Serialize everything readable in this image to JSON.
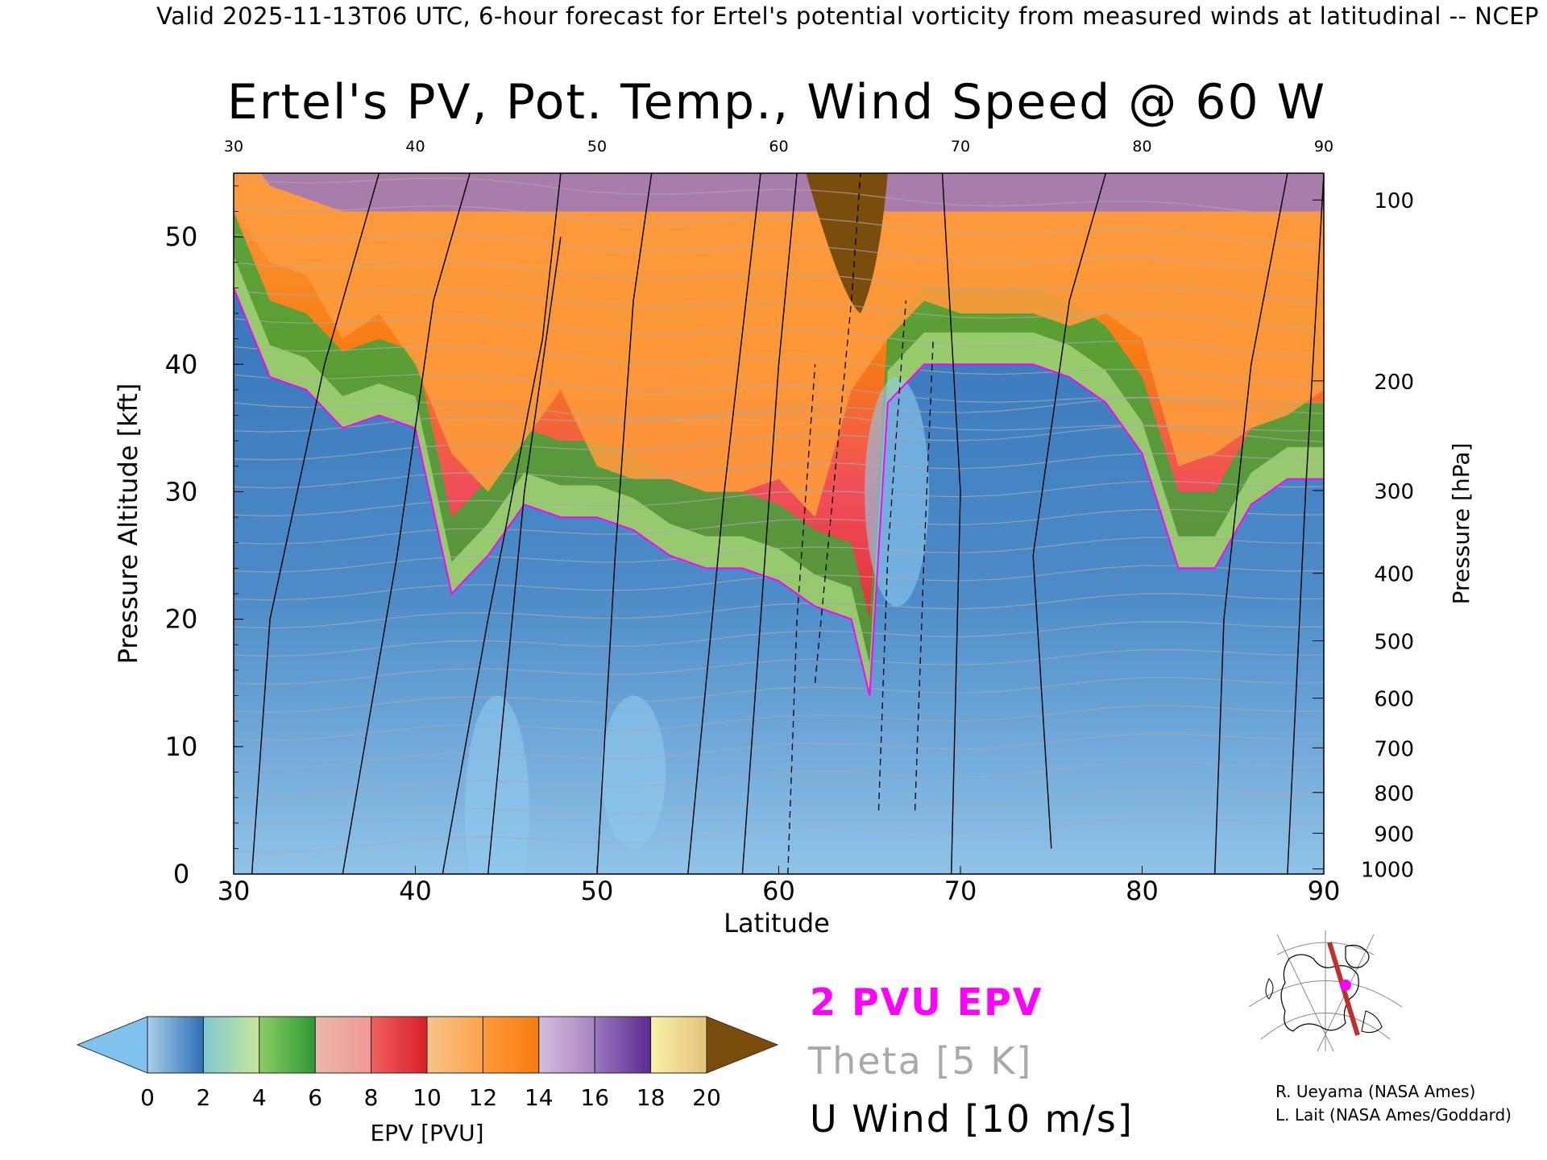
{
  "header": {
    "valid_line": "Valid 2025-11-13T06 UTC, 6-hour forecast for Ertel's potential vorticity from measured winds at latitudinal -- NCEP"
  },
  "chart_data": {
    "type": "heatmap",
    "title": "Ertel's PV, Pot. Temp., Wind Speed @ 60 W",
    "xlabel": "Latitude",
    "ylabel": "Pressure Altitude [kft]",
    "right_axis_label": "Pressure [hPa]",
    "xlim": [
      30,
      90
    ],
    "ylim": [
      0,
      55
    ],
    "x_ticks": [
      30,
      40,
      50,
      60,
      70,
      80,
      90
    ],
    "y_ticks": [
      0,
      10,
      20,
      30,
      40,
      50
    ],
    "pressure_ticks": [
      {
        "hPa": 100,
        "kft": 52.9
      },
      {
        "hPa": 200,
        "kft": 38.7
      },
      {
        "hPa": 300,
        "kft": 30.1
      },
      {
        "hPa": 400,
        "kft": 23.6
      },
      {
        "hPa": 500,
        "kft": 18.3
      },
      {
        "hPa": 600,
        "kft": 13.8
      },
      {
        "hPa": 700,
        "kft": 9.9
      },
      {
        "hPa": 800,
        "kft": 6.4
      },
      {
        "hPa": 900,
        "kft": 3.2
      },
      {
        "hPa": 1000,
        "kft": 0.4
      }
    ],
    "tropopause_2pvu_kft": [
      {
        "lat": 30,
        "kft": 46
      },
      {
        "lat": 32,
        "kft": 39
      },
      {
        "lat": 34,
        "kft": 38
      },
      {
        "lat": 36,
        "kft": 35
      },
      {
        "lat": 38,
        "kft": 36
      },
      {
        "lat": 40,
        "kft": 35
      },
      {
        "lat": 42,
        "kft": 22
      },
      {
        "lat": 44,
        "kft": 25
      },
      {
        "lat": 46,
        "kft": 29
      },
      {
        "lat": 48,
        "kft": 28
      },
      {
        "lat": 50,
        "kft": 28
      },
      {
        "lat": 52,
        "kft": 27
      },
      {
        "lat": 54,
        "kft": 25
      },
      {
        "lat": 56,
        "kft": 24
      },
      {
        "lat": 58,
        "kft": 24
      },
      {
        "lat": 60,
        "kft": 23
      },
      {
        "lat": 62,
        "kft": 21
      },
      {
        "lat": 64,
        "kft": 20
      },
      {
        "lat": 65,
        "kft": 14
      },
      {
        "lat": 66,
        "kft": 37
      },
      {
        "lat": 68,
        "kft": 40
      },
      {
        "lat": 70,
        "kft": 40
      },
      {
        "lat": 72,
        "kft": 40
      },
      {
        "lat": 74,
        "kft": 40
      },
      {
        "lat": 76,
        "kft": 39
      },
      {
        "lat": 78,
        "kft": 37
      },
      {
        "lat": 80,
        "kft": 33
      },
      {
        "lat": 82,
        "kft": 24
      },
      {
        "lat": 84,
        "kft": 24
      },
      {
        "lat": 86,
        "kft": 29
      },
      {
        "lat": 88,
        "kft": 31
      },
      {
        "lat": 90,
        "kft": 31
      }
    ],
    "pv_surface_kft": [
      {
        "lat": 30,
        "kft": 52
      },
      {
        "lat": 32,
        "kft": 48
      },
      {
        "lat": 34,
        "kft": 47
      },
      {
        "lat": 36,
        "kft": 42
      },
      {
        "lat": 38,
        "kft": 44
      },
      {
        "lat": 40,
        "kft": 40
      },
      {
        "lat": 42,
        "kft": 33
      },
      {
        "lat": 44,
        "kft": 30
      },
      {
        "lat": 46,
        "kft": 34
      },
      {
        "lat": 48,
        "kft": 38
      },
      {
        "lat": 50,
        "kft": 32
      },
      {
        "lat": 52,
        "kft": 31
      },
      {
        "lat": 54,
        "kft": 31
      },
      {
        "lat": 56,
        "kft": 30
      },
      {
        "lat": 58,
        "kft": 30
      },
      {
        "lat": 60,
        "kft": 31
      },
      {
        "lat": 62,
        "kft": 28
      },
      {
        "lat": 64,
        "kft": 38
      },
      {
        "lat": 65,
        "kft": 40
      },
      {
        "lat": 66,
        "kft": 42
      },
      {
        "lat": 68,
        "kft": 45
      },
      {
        "lat": 70,
        "kft": 44
      },
      {
        "lat": 72,
        "kft": 44
      },
      {
        "lat": 74,
        "kft": 44
      },
      {
        "lat": 76,
        "kft": 43
      },
      {
        "lat": 78,
        "kft": 44
      },
      {
        "lat": 80,
        "kft": 42
      },
      {
        "lat": 82,
        "kft": 32
      },
      {
        "lat": 84,
        "kft": 33
      },
      {
        "lat": 86,
        "kft": 35
      },
      {
        "lat": 88,
        "kft": 36
      },
      {
        "lat": 90,
        "kft": 38
      }
    ],
    "colorbar": {
      "label": "EPV [PVU]",
      "ticks": [
        0,
        2,
        4,
        6,
        8,
        10,
        12,
        14,
        16,
        18,
        20
      ],
      "bins": [
        {
          "from": 0,
          "to": 2,
          "colors": [
            "#a8cde6",
            "#2f6fb6"
          ]
        },
        {
          "from": 2,
          "to": 4,
          "colors": [
            "#7ec8d0",
            "#c9e69a"
          ]
        },
        {
          "from": 4,
          "to": 6,
          "colors": [
            "#8ccc64",
            "#2e9a36"
          ]
        },
        {
          "from": 6,
          "to": 8,
          "colors": [
            "#e8b8a8",
            "#f29898"
          ]
        },
        {
          "from": 8,
          "to": 10,
          "colors": [
            "#f06060",
            "#d81f2a"
          ]
        },
        {
          "from": 10,
          "to": 12,
          "colors": [
            "#f7c488",
            "#fca24c"
          ]
        },
        {
          "from": 12,
          "to": 14,
          "colors": [
            "#fd9a3c",
            "#f77b12"
          ]
        },
        {
          "from": 14,
          "to": 16,
          "colors": [
            "#d4bedc",
            "#a883c0"
          ]
        },
        {
          "from": 16,
          "to": 18,
          "colors": [
            "#9a78c0",
            "#5c2a90"
          ]
        },
        {
          "from": 18,
          "to": 20,
          "colors": [
            "#f8f2a8",
            "#e4c27a"
          ]
        }
      ],
      "under_color": "#7fc2ee",
      "over_color": "#7a4d0c"
    }
  },
  "legend": {
    "epv": "2 PVU EPV",
    "theta": "Theta [5 K]",
    "wind": "U Wind [10 m/s]"
  },
  "colors": {
    "epv_contour": "#ff00ff",
    "theta_contour": "#a9a9a9",
    "wind_contour": "#000000"
  },
  "credits": {
    "line1": "R. Ueyama (NASA Ames)",
    "line2": "L. Lait (NASA Ames/Goddard)"
  },
  "inset_map": {
    "description_icon": "globe-map-icon"
  }
}
